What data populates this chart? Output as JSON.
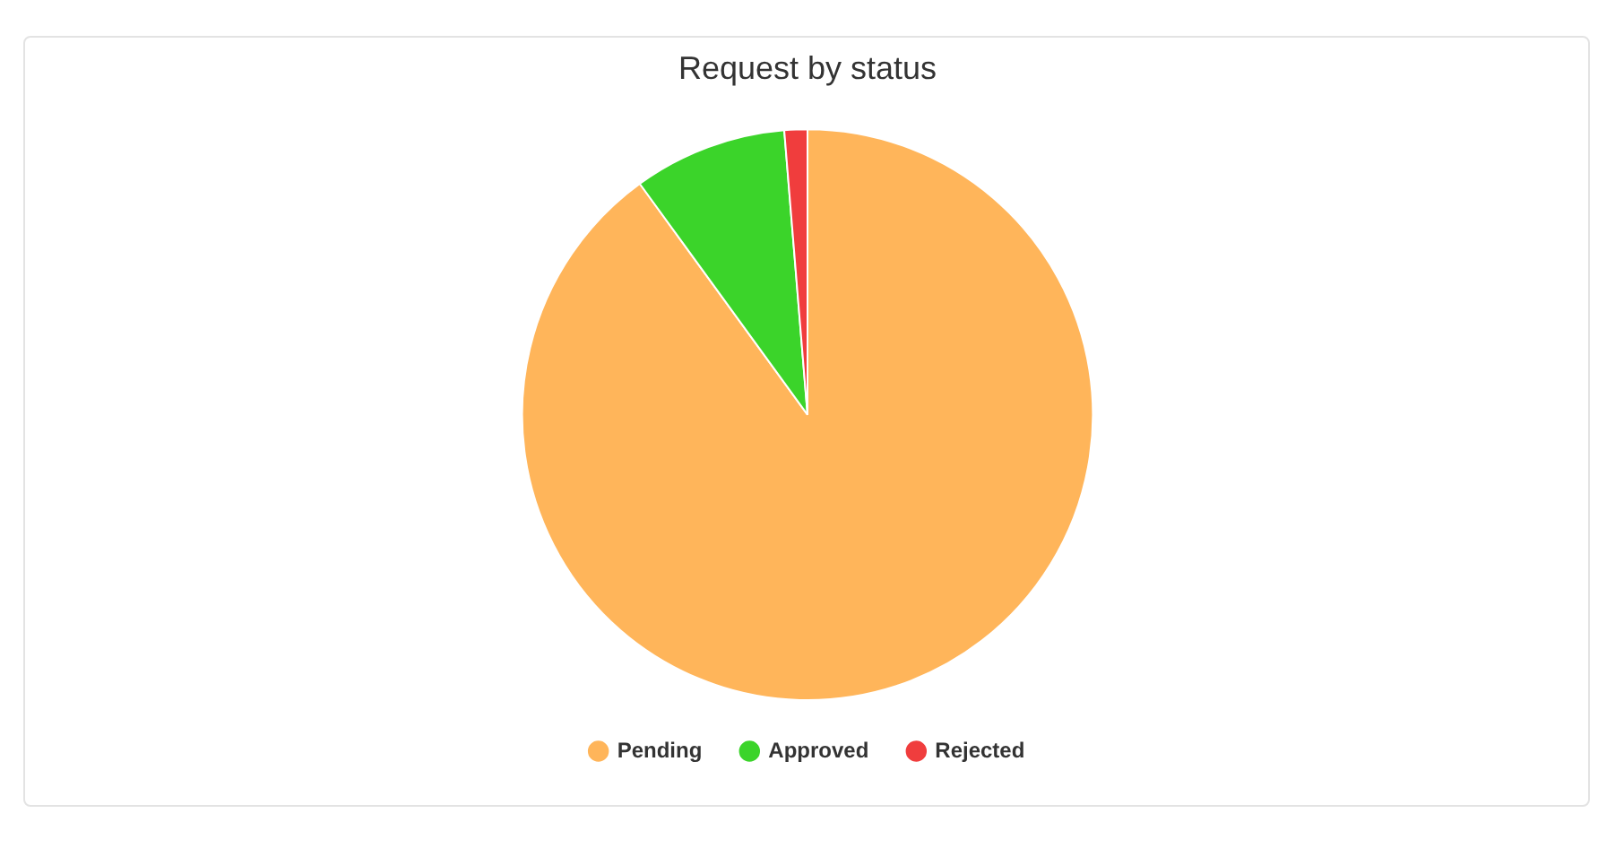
{
  "chart_data": {
    "type": "pie",
    "title": "Request by status",
    "categories": [
      "Pending",
      "Approved",
      "Rejected"
    ],
    "values": [
      90,
      8.7,
      1.3
    ],
    "colors": [
      "#ffb55a",
      "#3bd42a",
      "#f03d3d"
    ],
    "legend": "bottom"
  }
}
